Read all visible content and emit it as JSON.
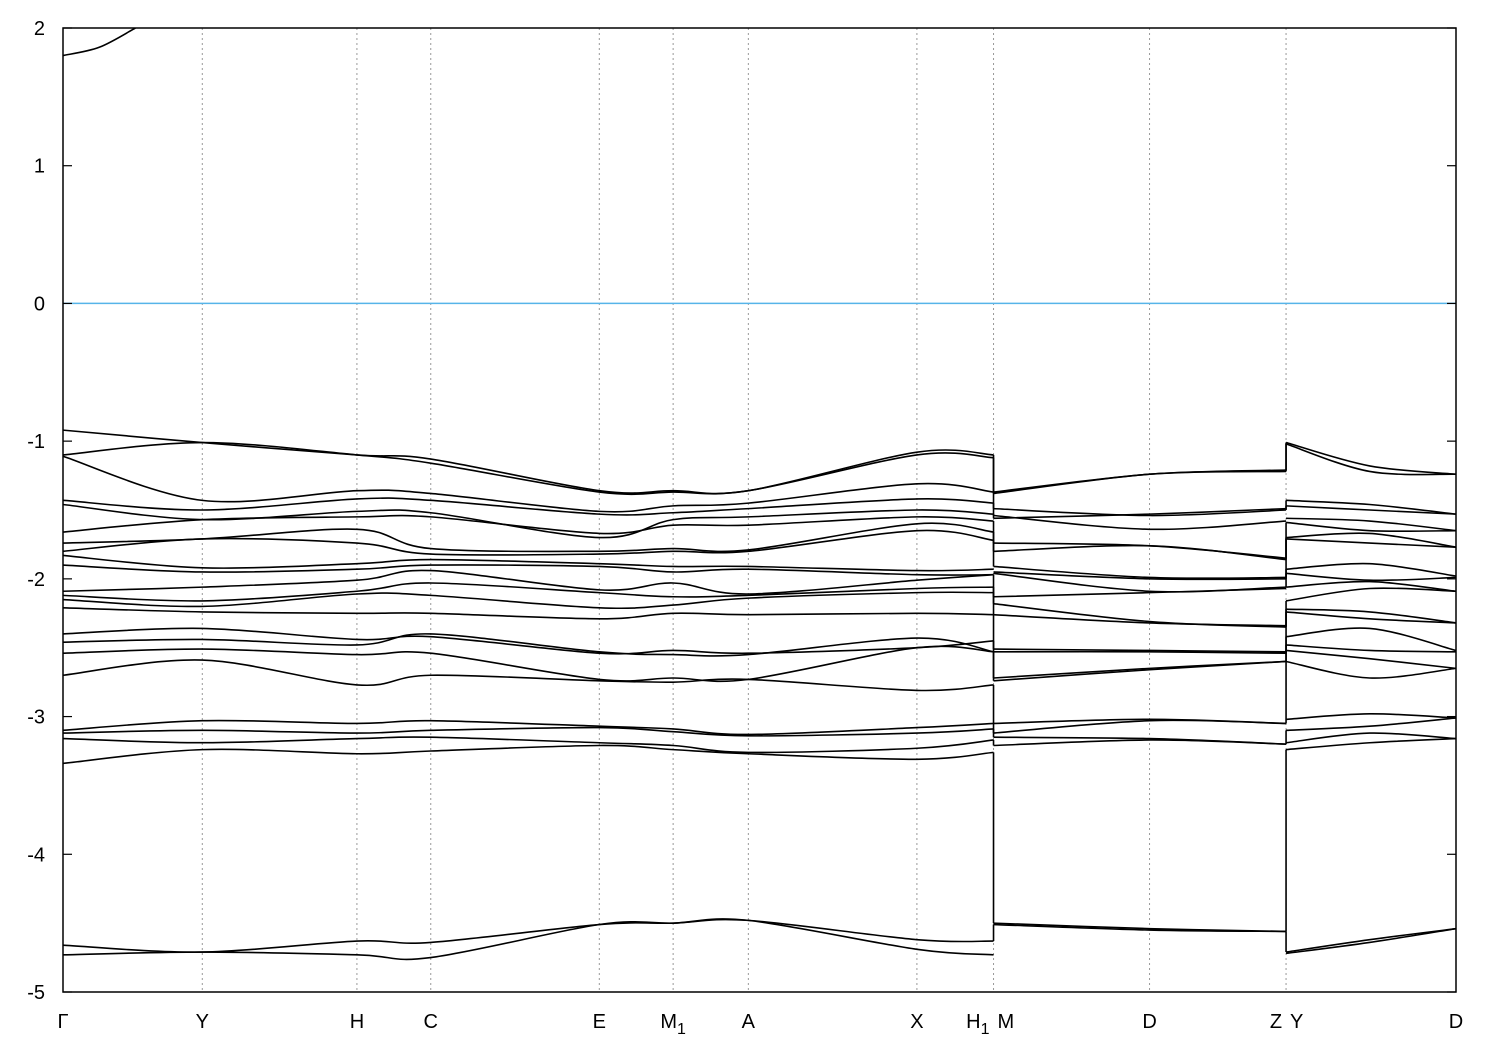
{
  "chart_data": {
    "type": "line",
    "title": "",
    "xlabel": "",
    "ylabel": "",
    "ylim": [
      -5,
      2
    ],
    "xlim": [
      0,
      1
    ],
    "yticks": [
      -5,
      -4,
      -3,
      -2,
      -1,
      0,
      1,
      2
    ],
    "grid": "vertical dotted lines at high-symmetry points",
    "reference_line": {
      "y": 0,
      "color": "#56b4e9"
    },
    "band_color": "#000000",
    "kpoints": [
      {
        "label": "Γ",
        "x": 0
      },
      {
        "label": "Y",
        "x": 0.1
      },
      {
        "label": "H",
        "x": 0.211
      },
      {
        "label": "C",
        "x": 0.264
      },
      {
        "label": "E",
        "x": 0.385
      },
      {
        "label": "M",
        "sub": "1",
        "x": 0.438
      },
      {
        "label": "A",
        "x": 0.492
      },
      {
        "label": "X",
        "x": 0.613
      },
      {
        "label": "H",
        "sub": "1",
        "x": 0.668
      },
      {
        "label": "M",
        "x": 0.668
      },
      {
        "label": "D",
        "x": 0.78
      },
      {
        "label": "Z",
        "x": 0.878
      },
      {
        "label": "Y",
        "x": 0.878
      },
      {
        "label": "D",
        "x": 1.0
      }
    ],
    "segments": [
      {
        "x": [
          0,
          0.1,
          0.211,
          0.264,
          0.385,
          0.438,
          0.492,
          0.613,
          0.668
        ],
        "bands": [
          [
            -0.92,
            -1.01,
            -1.1,
            -1.13,
            -1.36,
            -1.36,
            -1.36,
            -1.08,
            -1.1
          ],
          [
            -1.1,
            -1.01,
            -1.1,
            -1.16,
            -1.37,
            -1.37,
            -1.36,
            -1.1,
            -1.12
          ],
          [
            -1.11,
            -1.43,
            -1.36,
            -1.38,
            -1.51,
            -1.47,
            -1.45,
            -1.31,
            -1.37
          ],
          [
            -1.43,
            -1.5,
            -1.42,
            -1.43,
            -1.53,
            -1.52,
            -1.49,
            -1.42,
            -1.45
          ],
          [
            -1.46,
            -1.57,
            -1.51,
            -1.52,
            -1.7,
            -1.57,
            -1.55,
            -1.5,
            -1.53
          ],
          [
            -1.66,
            -1.57,
            -1.55,
            -1.55,
            -1.67,
            -1.61,
            -1.61,
            -1.55,
            -1.58
          ],
          [
            -1.74,
            -1.71,
            -1.64,
            -1.78,
            -1.8,
            -1.78,
            -1.79,
            -1.6,
            -1.66
          ],
          [
            -1.8,
            -1.71,
            -1.74,
            -1.82,
            -1.82,
            -1.8,
            -1.8,
            -1.65,
            -1.72
          ],
          [
            -1.83,
            -1.92,
            -1.89,
            -1.86,
            -1.89,
            -1.91,
            -1.91,
            -1.94,
            -1.93
          ],
          [
            -1.9,
            -1.95,
            -1.93,
            -1.9,
            -1.91,
            -1.95,
            -1.93,
            -1.97,
            -1.97
          ],
          [
            -2.09,
            -2.06,
            -2.01,
            -1.94,
            -2.08,
            -2.03,
            -2.11,
            -2.01,
            -1.97
          ],
          [
            -2.12,
            -2.16,
            -2.09,
            -2.03,
            -2.1,
            -2.13,
            -2.12,
            -2.07,
            -2.06
          ],
          [
            -2.15,
            -2.2,
            -2.11,
            -2.12,
            -2.21,
            -2.19,
            -2.14,
            -2.1,
            -2.1
          ],
          [
            -2.21,
            -2.24,
            -2.25,
            -2.25,
            -2.29,
            -2.25,
            -2.26,
            -2.25,
            -2.26
          ],
          [
            -2.4,
            -2.36,
            -2.44,
            -2.42,
            -2.54,
            -2.52,
            -2.54,
            -2.5,
            -2.45
          ],
          [
            -2.46,
            -2.44,
            -2.48,
            -2.4,
            -2.53,
            -2.55,
            -2.55,
            -2.43,
            -2.53
          ],
          [
            -2.54,
            -2.51,
            -2.55,
            -2.54,
            -2.73,
            -2.72,
            -2.73,
            -2.5,
            -2.53
          ],
          [
            -2.7,
            -2.59,
            -2.77,
            -2.7,
            -2.74,
            -2.75,
            -2.73,
            -2.81,
            -2.77
          ],
          [
            -3.1,
            -3.03,
            -3.05,
            -3.03,
            -3.07,
            -3.09,
            -3.13,
            -3.08,
            -3.05
          ],
          [
            -3.12,
            -3.1,
            -3.12,
            -3.1,
            -3.08,
            -3.11,
            -3.14,
            -3.12,
            -3.09
          ],
          [
            -3.16,
            -3.19,
            -3.16,
            -3.15,
            -3.19,
            -3.21,
            -3.26,
            -3.23,
            -3.17
          ],
          [
            -3.34,
            -3.24,
            -3.27,
            -3.25,
            -3.21,
            -3.24,
            -3.27,
            -3.31,
            -3.26
          ],
          [
            -4.66,
            -4.71,
            -4.63,
            -4.64,
            -4.51,
            -4.5,
            -4.48,
            -4.62,
            -4.63
          ],
          [
            -4.73,
            -4.71,
            -4.73,
            -4.75,
            -4.51,
            -4.5,
            -4.48,
            -4.69,
            -4.73
          ]
        ]
      },
      {
        "x": [
          0,
          0.026,
          0.052
        ],
        "bands": [
          [
            1.8,
            1.86,
            2.0
          ]
        ]
      },
      {
        "x": [
          0.668,
          0.78,
          0.878
        ],
        "bands": [
          [
            -1.37,
            -1.24,
            -1.21
          ],
          [
            -1.38,
            -1.24,
            -1.22
          ],
          [
            -1.49,
            -1.54,
            -1.5
          ],
          [
            -1.54,
            -1.64,
            -1.58
          ],
          [
            -1.56,
            -1.53,
            -1.49
          ],
          [
            -1.8,
            -1.76,
            -1.86
          ],
          [
            -1.74,
            -1.76,
            -1.85
          ],
          [
            -1.91,
            -1.99,
            -1.99
          ],
          [
            -1.95,
            -2.0,
            -2.0
          ],
          [
            -1.96,
            -2.09,
            -2.06
          ],
          [
            -2.13,
            -2.1,
            -2.07
          ],
          [
            -2.18,
            -2.31,
            -2.35
          ],
          [
            -2.26,
            -2.32,
            -2.34
          ],
          [
            -2.51,
            -2.52,
            -2.53
          ],
          [
            -2.53,
            -2.53,
            -2.54
          ],
          [
            -2.72,
            -2.65,
            -2.6
          ],
          [
            -2.74,
            -2.66,
            -2.6
          ],
          [
            -3.05,
            -3.02,
            -3.05
          ],
          [
            -3.12,
            -3.03,
            -3.05
          ],
          [
            -3.15,
            -3.16,
            -3.2
          ],
          [
            -3.21,
            -3.17,
            -3.2
          ],
          [
            -4.5,
            -4.54,
            -4.56
          ],
          [
            -4.51,
            -4.55,
            -4.56
          ]
        ]
      },
      {
        "x": [
          0.878,
          0.938,
          1.0
        ],
        "bands": [
          [
            -1.01,
            -1.18,
            -1.24
          ],
          [
            -1.02,
            -1.22,
            -1.24
          ],
          [
            -1.43,
            -1.46,
            -1.53
          ],
          [
            -1.47,
            -1.5,
            -1.53
          ],
          [
            -1.56,
            -1.58,
            -1.65
          ],
          [
            -1.59,
            -1.65,
            -1.65
          ],
          [
            -1.7,
            -1.67,
            -1.77
          ],
          [
            -1.71,
            -1.74,
            -1.77
          ],
          [
            -1.93,
            -1.89,
            -1.98
          ],
          [
            -1.96,
            -2.01,
            -1.99
          ],
          [
            -2.06,
            -2.02,
            -2.09
          ],
          [
            -2.16,
            -2.07,
            -2.09
          ],
          [
            -2.22,
            -2.24,
            -2.32
          ],
          [
            -2.24,
            -2.29,
            -2.32
          ],
          [
            -2.42,
            -2.36,
            -2.52
          ],
          [
            -2.48,
            -2.52,
            -2.53
          ],
          [
            -2.52,
            -2.58,
            -2.65
          ],
          [
            -2.6,
            -2.72,
            -2.65
          ],
          [
            -3.02,
            -2.98,
            -3.01
          ],
          [
            -3.1,
            -3.07,
            -3.01
          ],
          [
            -3.19,
            -3.12,
            -3.16
          ],
          [
            -3.24,
            -3.19,
            -3.16
          ],
          [
            -4.71,
            -4.62,
            -4.54
          ],
          [
            -4.72,
            -4.64,
            -4.54
          ]
        ]
      }
    ]
  }
}
